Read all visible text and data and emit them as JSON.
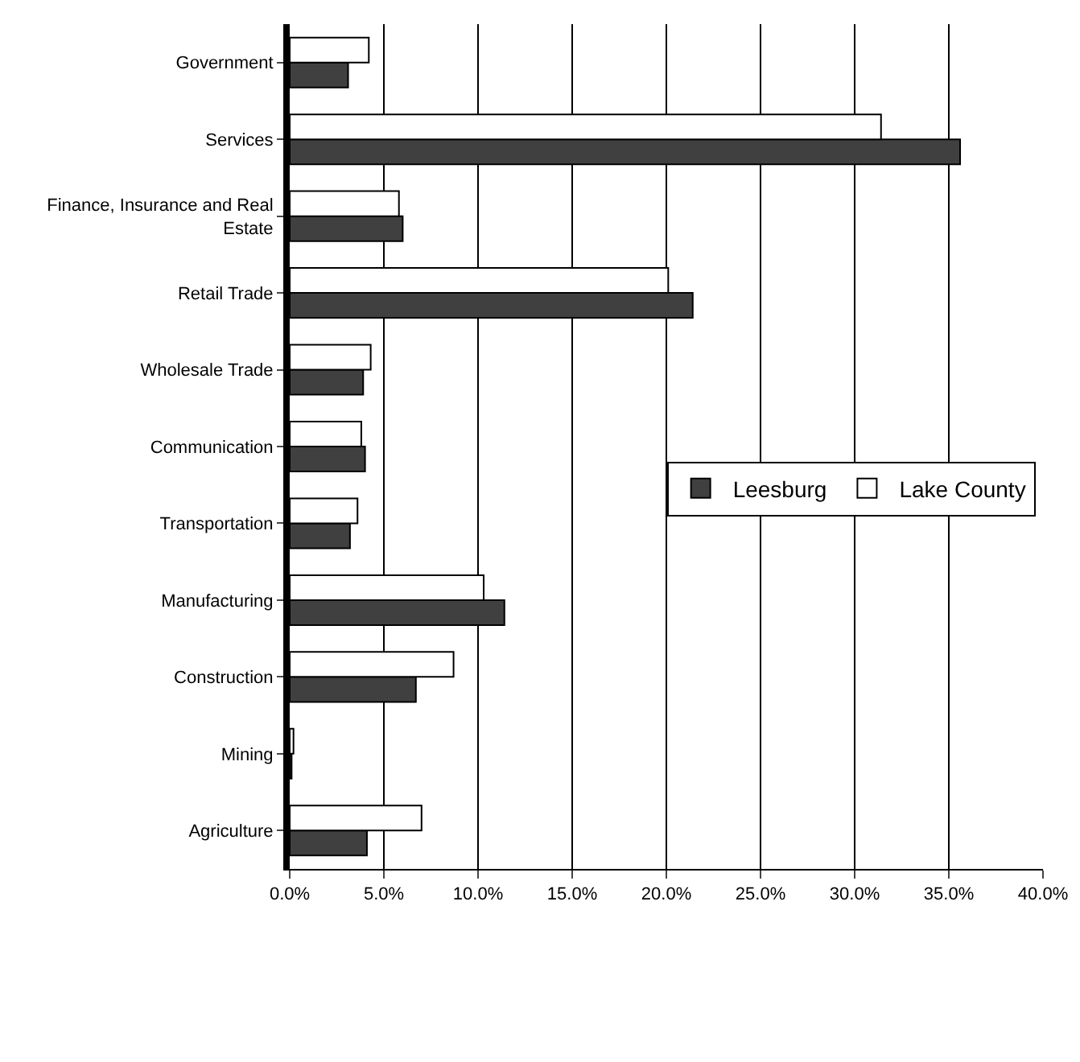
{
  "chart_data": {
    "type": "bar",
    "orientation": "horizontal",
    "categories": [
      "Government",
      "Services",
      "Finance, Insurance and Real Estate",
      "Retail Trade",
      "Wholesale Trade",
      "Communication",
      "Transportation",
      "Manufacturing",
      "Construction",
      "Mining",
      "Agriculture"
    ],
    "series": [
      {
        "name": "Leesburg",
        "color": "#404040",
        "values": [
          3.1,
          35.6,
          6.0,
          21.4,
          3.9,
          4.0,
          3.2,
          11.4,
          6.7,
          0.1,
          4.1
        ]
      },
      {
        "name": "Lake County",
        "color": "#ffffff",
        "values": [
          4.2,
          31.4,
          5.8,
          20.1,
          4.3,
          3.8,
          3.6,
          10.3,
          8.7,
          0.2,
          7.0
        ]
      }
    ],
    "xlim": [
      0,
      40
    ],
    "xticks": [
      {
        "value": 0,
        "label": "0.0%"
      },
      {
        "value": 5,
        "label": "5.0%"
      },
      {
        "value": 10,
        "label": "10.0%"
      },
      {
        "value": 15,
        "label": "15.0%"
      },
      {
        "value": 20,
        "label": "20.0%"
      },
      {
        "value": 25,
        "label": "25.0%"
      },
      {
        "value": 30,
        "label": "30.0%"
      },
      {
        "value": 35,
        "label": "35.0%"
      },
      {
        "value": 40,
        "label": "40.0%"
      }
    ],
    "grid": "x",
    "legend": "right"
  }
}
